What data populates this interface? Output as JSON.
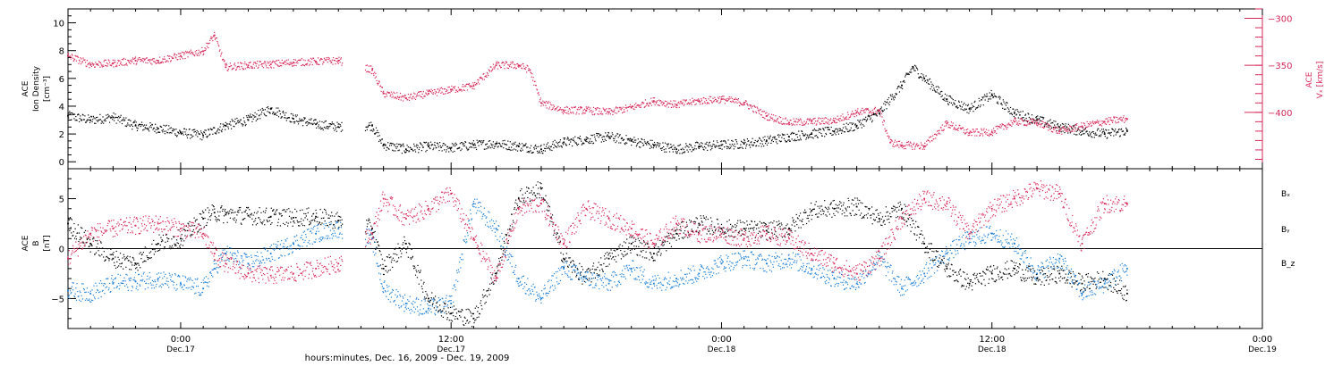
{
  "colors": {
    "black": "#000000",
    "pink": "#d62a5a",
    "blue": "#1f7fd6"
  },
  "x_axis": {
    "caption": "hours:minutes, Dec. 16, 2009 - Dec. 19, 2009",
    "ticks": [
      {
        "hour": 0,
        "time": "0:00",
        "date": "Dec.17"
      },
      {
        "hour": 12,
        "time": "12:00",
        "date": "Dec.17"
      },
      {
        "hour": 24,
        "time": "0:00",
        "date": "Dec.18"
      },
      {
        "hour": 36,
        "time": "12:00",
        "date": "Dec.18"
      },
      {
        "hour": 48,
        "time": "0:00",
        "date": "Dec.19"
      }
    ]
  },
  "chart_data": [
    {
      "type": "scatter",
      "panel": "top",
      "left_axis": {
        "label_lines": [
          "ACE",
          "Ion Density",
          "[cm⁻³]"
        ],
        "ticks": [
          0,
          2,
          4,
          6,
          8,
          10
        ],
        "range": [
          -0.5,
          11
        ]
      },
      "right_axis": {
        "label_lines": [
          "ACE",
          "Vₓ [km/s]"
        ],
        "ticks": [
          -300,
          -350,
          -400
        ],
        "range": [
          -460,
          -290
        ]
      },
      "x_range_hours": [
        -5,
        48
      ],
      "data_gap_hours": [
        7.2,
        8.2
      ],
      "series": [
        {
          "axis": "left",
          "color": "black",
          "x": [
            -5,
            -4,
            -3,
            -2,
            -1,
            0,
            1,
            2,
            3,
            4,
            5,
            6,
            7,
            8.5,
            9,
            10,
            11,
            12,
            13,
            14,
            15,
            16,
            17,
            18,
            19,
            20,
            21,
            22,
            23,
            24,
            25,
            26,
            27,
            28,
            29,
            30,
            31,
            32,
            32.5,
            33,
            34,
            35,
            36,
            37,
            38,
            39,
            40,
            41,
            42
          ],
          "y": [
            3.3,
            3.0,
            3.2,
            2.6,
            2.4,
            2.1,
            1.9,
            2.6,
            3.0,
            3.8,
            3.1,
            2.7,
            2.5,
            2.6,
            1.2,
            0.9,
            1.1,
            1.0,
            1.2,
            1.3,
            1.1,
            0.9,
            1.4,
            1.6,
            1.8,
            1.5,
            1.2,
            0.9,
            1.1,
            1.2,
            1.3,
            1.5,
            1.8,
            2.0,
            2.2,
            2.6,
            3.5,
            5.5,
            6.8,
            6.0,
            4.5,
            3.8,
            4.8,
            3.5,
            3.0,
            2.5,
            2.2,
            2.0,
            2.2
          ]
        },
        {
          "axis": "right",
          "color": "pink",
          "x": [
            -5,
            -4,
            -3,
            -2,
            -1,
            0,
            1,
            1.5,
            2,
            3,
            4,
            5,
            6,
            7,
            8.5,
            9,
            10,
            11,
            12,
            13,
            14,
            15,
            15.5,
            16,
            17,
            18,
            19,
            20,
            21,
            22,
            23,
            24,
            25,
            26,
            27,
            28,
            29,
            30,
            31,
            31.5,
            32,
            33,
            34,
            35,
            36,
            37,
            38,
            39,
            40,
            41,
            42
          ],
          "y": [
            -340,
            -349,
            -348,
            -345,
            -345,
            -340,
            -335,
            -318,
            -352,
            -350,
            -349,
            -347,
            -346,
            -345,
            -355,
            -380,
            -385,
            -380,
            -376,
            -372,
            -350,
            -350,
            -355,
            -390,
            -398,
            -398,
            -400,
            -395,
            -388,
            -392,
            -388,
            -386,
            -390,
            -404,
            -411,
            -410,
            -409,
            -400,
            -398,
            -432,
            -435,
            -436,
            -412,
            -422,
            -421,
            -410,
            -411,
            -420,
            -415,
            -410,
            -407
          ]
        }
      ]
    },
    {
      "type": "scatter",
      "panel": "bottom",
      "left_axis": {
        "label_lines": [
          "ACE",
          "B",
          "[nT]"
        ],
        "ticks": [
          5,
          0,
          -5
        ],
        "range": [
          -8,
          8
        ]
      },
      "x_range_hours": [
        -5,
        48
      ],
      "data_gap_hours": [
        7.2,
        8.2
      ],
      "legend": [
        {
          "label": "Bₓ",
          "color": "black"
        },
        {
          "label": "Bᵧ",
          "color": "blue"
        },
        {
          "label": "B_z",
          "color": "pink"
        }
      ],
      "series": [
        {
          "name": "Bₓ",
          "color": "black",
          "x": [
            -5,
            -4,
            -3,
            -2,
            -1,
            0,
            1,
            1.5,
            2,
            3,
            4,
            5,
            6,
            7,
            8.5,
            9,
            10,
            11,
            12,
            13,
            14,
            15,
            16,
            17,
            18,
            19,
            20,
            21,
            22,
            23,
            24,
            25,
            26,
            27,
            28,
            29,
            30,
            31,
            32,
            33,
            34,
            35,
            36,
            37,
            38,
            39,
            40,
            41,
            42
          ],
          "y": [
            2.5,
            0.5,
            -1.0,
            -1.5,
            0.5,
            1.0,
            3.0,
            3.6,
            3.4,
            3.3,
            3.2,
            3.1,
            3.2,
            2.8,
            2.0,
            -2.0,
            0.5,
            -5.0,
            -6.5,
            -7.0,
            -2.5,
            5.0,
            6.0,
            -1.0,
            -3.0,
            -1.0,
            0.5,
            -0.5,
            1.5,
            2.5,
            2.0,
            2.0,
            1.8,
            2.0,
            3.8,
            4.0,
            4.2,
            3.0,
            4.0,
            0.5,
            -2.0,
            -3.5,
            -2.5,
            -2.0,
            -3.0,
            -2.5,
            -3.5,
            -3.0,
            -4.5
          ]
        },
        {
          "name": "Bᵧ",
          "color": "blue",
          "x": [
            -5,
            -4,
            -3,
            -2,
            -1,
            0,
            1,
            1.5,
            2,
            3,
            4,
            5,
            6,
            7,
            8.5,
            9,
            10,
            11,
            12,
            13,
            14,
            15,
            16,
            17,
            18,
            19,
            20,
            21,
            22,
            23,
            24,
            25,
            26,
            27,
            28,
            29,
            30,
            31,
            32,
            33,
            34,
            35,
            36,
            37,
            38,
            39,
            40,
            41,
            42
          ],
          "y": [
            -4.2,
            -4.5,
            -3.5,
            -3.3,
            -3.0,
            -3.5,
            -4.0,
            -2.0,
            -0.5,
            -1.5,
            -0.5,
            0.5,
            1.5,
            2.0,
            1.0,
            -4.0,
            -5.5,
            -6.0,
            -5.5,
            4.5,
            2.0,
            -3.0,
            -5.0,
            -2.0,
            -3.0,
            -3.5,
            -2.0,
            -3.5,
            -3.0,
            -2.5,
            -1.5,
            -1.0,
            -1.5,
            -1.0,
            -2.0,
            -3.0,
            -3.5,
            -1.0,
            -4.0,
            -2.5,
            -0.5,
            1.0,
            1.5,
            0.5,
            -2.5,
            -1.0,
            -4.5,
            -3.5,
            -2.0
          ]
        },
        {
          "name": "B_z",
          "color": "pink",
          "x": [
            -5,
            -4,
            -3,
            -2,
            -1,
            0,
            1,
            1.5,
            2,
            3,
            4,
            5,
            6,
            7,
            8.5,
            9,
            10,
            11,
            12,
            13,
            14,
            15,
            16,
            17,
            18,
            19,
            20,
            21,
            22,
            23,
            24,
            25,
            26,
            27,
            28,
            29,
            30,
            31,
            32,
            33,
            34,
            35,
            36,
            37,
            38,
            39,
            40,
            41,
            42
          ],
          "y": [
            -1.0,
            1.5,
            2.0,
            2.3,
            2.5,
            2.0,
            1.5,
            -0.5,
            -1.5,
            -2.5,
            -2.7,
            -2.5,
            -2.0,
            -1.5,
            1.5,
            5.0,
            3.0,
            4.0,
            5.5,
            1.0,
            -3.0,
            4.0,
            4.5,
            0.5,
            4.0,
            3.0,
            2.0,
            0.5,
            2.5,
            1.5,
            1.5,
            1.0,
            1.5,
            1.0,
            -0.5,
            -1.5,
            -2.5,
            -1.0,
            3.0,
            5.0,
            4.5,
            1.5,
            4.0,
            5.0,
            6.0,
            5.5,
            0.5,
            4.5,
            4.5
          ]
        }
      ]
    }
  ]
}
